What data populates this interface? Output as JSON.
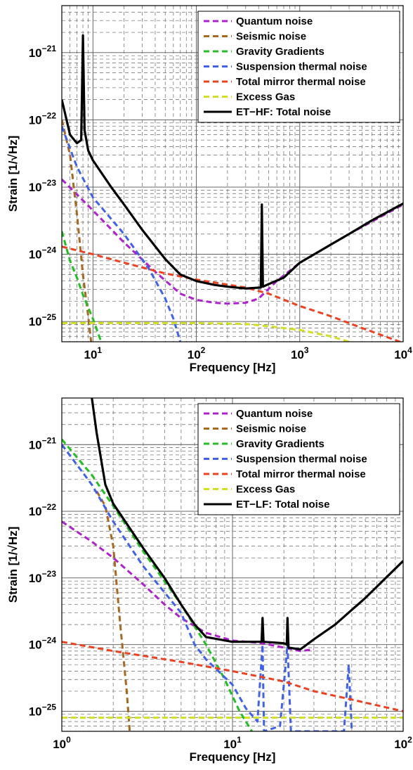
{
  "chart_data": [
    {
      "type": "line",
      "title": "",
      "xlabel": "Frequency [Hz]",
      "ylabel": "Strain [1/√Hz]",
      "xscale": "log",
      "yscale": "log",
      "xlim": [
        5,
        10000
      ],
      "ylim": [
        5e-26,
        5e-21
      ],
      "xticks": [
        {
          "value": 10,
          "base": "10",
          "exp": "1"
        },
        {
          "value": 100,
          "base": "10",
          "exp": "2"
        },
        {
          "value": 1000,
          "base": "10",
          "exp": "3"
        },
        {
          "value": 10000,
          "base": "10",
          "exp": "4"
        }
      ],
      "yticks": [
        {
          "value": 1e-25,
          "base": "10",
          "exp": "−25"
        },
        {
          "value": 1e-24,
          "base": "10",
          "exp": "−24"
        },
        {
          "value": 1e-23,
          "base": "10",
          "exp": "−23"
        },
        {
          "value": 1e-22,
          "base": "10",
          "exp": "−22"
        },
        {
          "value": 1e-21,
          "base": "10",
          "exp": "−21"
        }
      ],
      "grid": true,
      "legend_position": "top-right",
      "series": [
        {
          "name": "Quantum noise",
          "color": "#b020d0",
          "dash": true,
          "points": [
            [
              5,
              1.3e-23
            ],
            [
              10,
              4.5e-24
            ],
            [
              20,
              1.5e-24
            ],
            [
              40,
              5.5e-25
            ],
            [
              70,
              2.6e-25
            ],
            [
              100,
              2.1e-25
            ],
            [
              150,
              1.9e-25
            ],
            [
              200,
              1.85e-25
            ],
            [
              300,
              1.9e-25
            ],
            [
              400,
              2.2e-25
            ],
            [
              600,
              4e-25
            ],
            [
              1000,
              7.5e-25
            ],
            [
              3000,
              2e-24
            ],
            [
              10000,
              5.5e-24
            ]
          ]
        },
        {
          "name": "Seismic noise",
          "color": "#a86820",
          "dash": true,
          "points": [
            [
              5,
              1e-22
            ],
            [
              6,
              3e-23
            ],
            [
              7,
              4e-24
            ],
            [
              8,
              5e-25
            ],
            [
              9,
              1.2e-25
            ],
            [
              9.6,
              5e-26
            ]
          ]
        },
        {
          "name": "Gravity Gradients",
          "color": "#20c020",
          "dash": true,
          "points": [
            [
              5,
              2.2e-24
            ],
            [
              6,
              8e-25
            ],
            [
              7,
              4.5e-25
            ],
            [
              8,
              2.5e-25
            ],
            [
              10,
              1.1e-25
            ],
            [
              12,
              5e-26
            ]
          ]
        },
        {
          "name": "Suspension thermal noise",
          "color": "#4060f0",
          "dash": true,
          "points": [
            [
              5,
              8e-23
            ],
            [
              7,
              2e-23
            ],
            [
              10,
              7e-24
            ],
            [
              20,
              2e-24
            ],
            [
              35,
              6e-25
            ],
            [
              50,
              2.2e-25
            ],
            [
              60,
              1.1e-25
            ],
            [
              70,
              5e-26
            ]
          ]
        },
        {
          "name": "Total mirror thermal noise",
          "color": "#f04020",
          "dash": true,
          "points": [
            [
              5,
              1.3e-24
            ],
            [
              10,
              1e-24
            ],
            [
              20,
              7.5e-25
            ],
            [
              50,
              5.2e-25
            ],
            [
              100,
              4.2e-25
            ],
            [
              300,
              3.2e-25
            ],
            [
              500,
              2.6e-25
            ],
            [
              1000,
              1.7e-25
            ],
            [
              2000,
              1.2e-25
            ],
            [
              4000,
              8e-26
            ],
            [
              10000,
              4.8e-26
            ]
          ]
        },
        {
          "name": "Excess Gas",
          "color": "#d0e020",
          "dash": true,
          "points": [
            [
              5,
              9.5e-26
            ],
            [
              100,
              9.5e-26
            ],
            [
              300,
              9.2e-26
            ],
            [
              500,
              8.5e-26
            ],
            [
              1000,
              7.5e-26
            ],
            [
              2000,
              6e-26
            ],
            [
              3000,
              5e-26
            ]
          ]
        },
        {
          "name": "ET−HF: Total noise",
          "color": "#000000",
          "dash": false,
          "points": [
            [
              5,
              2e-22
            ],
            [
              6,
              6e-23
            ],
            [
              7,
              4.5e-23
            ],
            [
              7.7,
              5e-23
            ],
            [
              8,
              1.8e-21
            ],
            [
              8.3,
              7e-23
            ],
            [
              9,
              3.5e-23
            ],
            [
              10,
              2.5e-23
            ],
            [
              15,
              1e-23
            ],
            [
              20,
              5.5e-24
            ],
            [
              30,
              2.3e-24
            ],
            [
              50,
              8.5e-25
            ],
            [
              70,
              5e-25
            ],
            [
              100,
              4e-25
            ],
            [
              150,
              3.5e-25
            ],
            [
              200,
              3.3e-25
            ],
            [
              300,
              3.1e-25
            ],
            [
              420,
              3.2e-25
            ],
            [
              430,
              5.5e-24
            ],
            [
              440,
              3.3e-25
            ],
            [
              500,
              3.6e-25
            ],
            [
              700,
              4.5e-25
            ],
            [
              1000,
              7.5e-25
            ],
            [
              2000,
              1.4e-24
            ],
            [
              3000,
              2e-24
            ],
            [
              5000,
              3.2e-24
            ],
            [
              10000,
              5.7e-24
            ]
          ]
        }
      ]
    },
    {
      "type": "line",
      "title": "",
      "xlabel": "Frequency [Hz]",
      "ylabel": "Strain [1/√Hz]",
      "xscale": "log",
      "yscale": "log",
      "xlim": [
        1,
        100
      ],
      "ylim": [
        5e-26,
        5e-21
      ],
      "xticks": [
        {
          "value": 1,
          "base": "10",
          "exp": "0"
        },
        {
          "value": 10,
          "base": "10",
          "exp": "1"
        },
        {
          "value": 100,
          "base": "10",
          "exp": "2"
        }
      ],
      "yticks": [
        {
          "value": 1e-25,
          "base": "10",
          "exp": "−25"
        },
        {
          "value": 1e-24,
          "base": "10",
          "exp": "−24"
        },
        {
          "value": 1e-23,
          "base": "10",
          "exp": "−23"
        },
        {
          "value": 1e-22,
          "base": "10",
          "exp": "−22"
        },
        {
          "value": 1e-21,
          "base": "10",
          "exp": "−21"
        }
      ],
      "grid": true,
      "legend_position": "top-right",
      "series": [
        {
          "name": "Quantum noise",
          "color": "#b020d0",
          "dash": true,
          "points": [
            [
              1,
              7e-23
            ],
            [
              1.5,
              3.5e-23
            ],
            [
              2,
              2e-23
            ],
            [
              3,
              8e-24
            ],
            [
              4,
              4e-24
            ],
            [
              5,
              2.5e-24
            ],
            [
              7,
              1.5e-24
            ],
            [
              10,
              1.15e-24
            ],
            [
              15,
              1.05e-24
            ],
            [
              20,
              9e-25
            ],
            [
              25,
              8e-25
            ],
            [
              30,
              8.5e-25
            ]
          ]
        },
        {
          "name": "Seismic noise",
          "color": "#a86820",
          "dash": true,
          "points": [
            [
              1.6,
              2e-22
            ],
            [
              1.8,
              1.2e-22
            ],
            [
              2,
              3e-23
            ],
            [
              2.2,
              2e-24
            ],
            [
              2.4,
              2e-25
            ],
            [
              2.5,
              5e-26
            ]
          ]
        },
        {
          "name": "Gravity Gradients",
          "color": "#20c020",
          "dash": true,
          "points": [
            [
              1,
              1.2e-21
            ],
            [
              1.5,
              3.5e-22
            ],
            [
              2,
              1.2e-22
            ],
            [
              3,
              2.5e-23
            ],
            [
              5,
              4e-24
            ],
            [
              7,
              1e-24
            ],
            [
              9,
              3e-25
            ],
            [
              11,
              1e-25
            ],
            [
              13,
              5e-26
            ]
          ]
        },
        {
          "name": "Suspension thermal noise",
          "color": "#4060f0",
          "dash": true,
          "points": [
            [
              1,
              1e-21
            ],
            [
              1.5,
              2.5e-22
            ],
            [
              2,
              7e-23
            ],
            [
              3,
              1.5e-23
            ],
            [
              5,
              3e-24
            ],
            [
              6,
              1e-24
            ],
            [
              7,
              6e-25
            ],
            [
              10,
              2.5e-25
            ],
            [
              12,
              1.1e-25
            ],
            [
              14,
              7e-26
            ],
            [
              15,
              1e-24
            ],
            [
              15.3,
              5e-26
            ],
            [
              19,
              6e-26
            ],
            [
              21,
              1e-24
            ],
            [
              22,
              5e-26
            ],
            [
              30,
              5e-26
            ],
            [
              45,
              5e-26
            ],
            [
              48,
              5e-25
            ],
            [
              50,
              5e-26
            ]
          ]
        },
        {
          "name": "Total mirror thermal noise",
          "color": "#f04020",
          "dash": true,
          "points": [
            [
              1,
              1.1e-24
            ],
            [
              2,
              8e-25
            ],
            [
              5,
              5.5e-25
            ],
            [
              10,
              4e-25
            ],
            [
              20,
              2.8e-25
            ],
            [
              30,
              2e-25
            ],
            [
              50,
              1.5e-25
            ],
            [
              100,
              1e-25
            ]
          ]
        },
        {
          "name": "Excess Gas",
          "color": "#d0e020",
          "dash": true,
          "points": [
            [
              1,
              8e-26
            ],
            [
              100,
              8e-26
            ]
          ]
        },
        {
          "name": "ET−LF: Total noise",
          "color": "#000000",
          "dash": false,
          "points": [
            [
              1.5,
              5e-21
            ],
            [
              1.6,
              1.5e-21
            ],
            [
              1.8,
              2.5e-22
            ],
            [
              2,
              1.3e-22
            ],
            [
              3,
              2.8e-23
            ],
            [
              4,
              1e-23
            ],
            [
              5,
              4e-24
            ],
            [
              6,
              2e-24
            ],
            [
              7,
              1.3e-24
            ],
            [
              10,
              1.1e-24
            ],
            [
              14,
              1.1e-24
            ],
            [
              14.8,
              1.1e-24
            ],
            [
              15,
              2.5e-24
            ],
            [
              15.2,
              1.1e-24
            ],
            [
              20,
              1.05e-24
            ],
            [
              20.8,
              1e-24
            ],
            [
              21,
              2.5e-24
            ],
            [
              21.3,
              9e-25
            ],
            [
              25,
              8.5e-25
            ],
            [
              30,
              1.2e-24
            ],
            [
              40,
              2e-24
            ],
            [
              60,
              5e-24
            ],
            [
              100,
              1.8e-23
            ]
          ]
        }
      ]
    }
  ]
}
